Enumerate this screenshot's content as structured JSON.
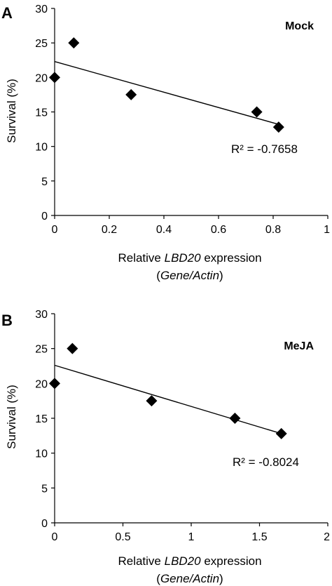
{
  "chart_data": [
    {
      "type": "scatter",
      "panel": "A",
      "treatment": "Mock",
      "xlabel": {
        "pre": "Relative ",
        "gene": "LBD20",
        "post": " expression",
        "open": "(",
        "unit": "Gene/Actin",
        "close": ")"
      },
      "ylabel": "Survival (%)",
      "xlim": [
        0,
        1
      ],
      "ylim": [
        0,
        30
      ],
      "xticks": [
        "0",
        "0.2",
        "0.4",
        "0.6",
        "0.8",
        "1"
      ],
      "yticks": [
        "0",
        "5",
        "10",
        "15",
        "20",
        "25",
        "30"
      ],
      "points": [
        {
          "x": 0.0,
          "y": 20.0
        },
        {
          "x": 0.07,
          "y": 25.0
        },
        {
          "x": 0.28,
          "y": 17.5
        },
        {
          "x": 0.74,
          "y": 15.0
        },
        {
          "x": 0.82,
          "y": 12.8
        }
      ],
      "trendline": {
        "x0": 0.0,
        "y0": 22.3,
        "x1": 0.82,
        "y1": 13.2
      },
      "r2_label": "R² = -0.7658",
      "grid": false,
      "marker": "diamond",
      "color": "#000000"
    },
    {
      "type": "scatter",
      "panel": "B",
      "treatment": "MeJA",
      "xlabel": {
        "pre": "Relative ",
        "gene": "LBD20",
        "post": " expression",
        "open": "(",
        "unit": "Gene/Actin",
        "close": ")"
      },
      "ylabel": "Survival (%)",
      "xlim": [
        0,
        2
      ],
      "ylim": [
        0,
        30
      ],
      "xticks": [
        "0",
        "0.5",
        "1",
        "1.5",
        "2"
      ],
      "yticks": [
        "0",
        "5",
        "10",
        "15",
        "20",
        "25",
        "30"
      ],
      "points": [
        {
          "x": 0.0,
          "y": 20.0
        },
        {
          "x": 0.13,
          "y": 25.0
        },
        {
          "x": 0.71,
          "y": 17.5
        },
        {
          "x": 1.32,
          "y": 15.0
        },
        {
          "x": 1.66,
          "y": 12.8
        }
      ],
      "trendline": {
        "x0": 0.0,
        "y0": 22.6,
        "x1": 1.66,
        "y1": 12.8
      },
      "r2_label": "R² = -0.8024",
      "grid": false,
      "marker": "diamond",
      "color": "#000000"
    }
  ]
}
